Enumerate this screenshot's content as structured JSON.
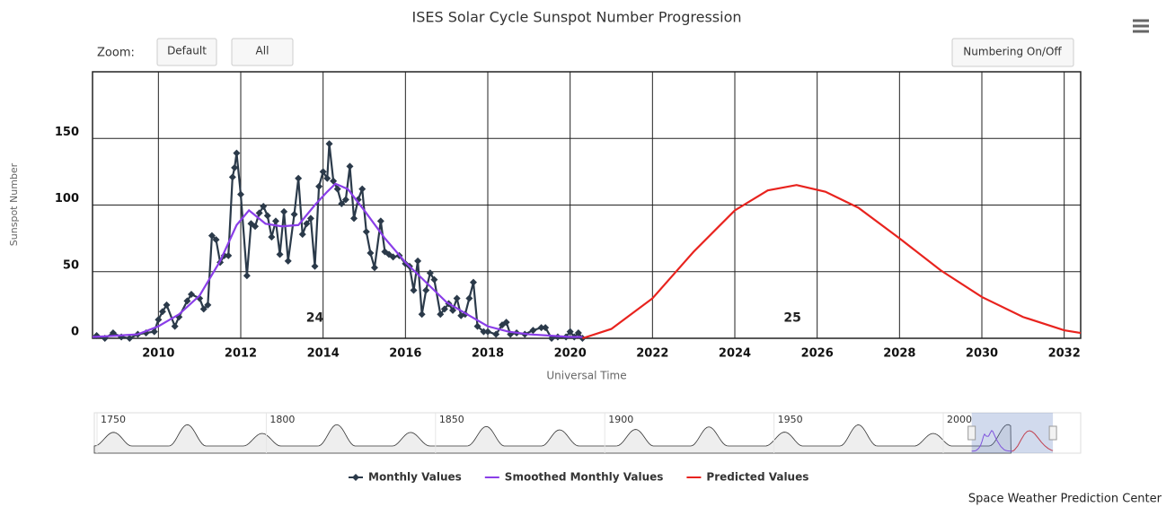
{
  "chart_data": {
    "type": "line",
    "title": "ISES Solar Cycle Sunspot Number Progression",
    "zoom_label": "Zoom:",
    "buttons": [
      "Default",
      "All",
      "Numbering On/Off"
    ],
    "x_label": "Universal Time",
    "y_label": "Sunspot Number",
    "credits": "Space Weather Prediction Center",
    "xlim": [
      2008.4,
      2032.4
    ],
    "xticks": [
      2010,
      2012,
      2014,
      2016,
      2018,
      2020,
      2022,
      2024,
      2026,
      2028,
      2030,
      2032
    ],
    "ylim": [
      0,
      200
    ],
    "yticks": [
      0,
      50,
      100,
      150
    ],
    "grid": true,
    "annotations": [
      {
        "text": "24",
        "x": 2013.8,
        "y": 15
      },
      {
        "text": "25",
        "x": 2025.4,
        "y": 15
      }
    ],
    "navigator": {
      "xlim": [
        1749.2,
        2040.6
      ],
      "xticks": [
        1750,
        1800,
        1850,
        1900,
        1950,
        2000
      ]
    },
    "series": [
      {
        "name": "Monthly Values",
        "color": "#2b3a4a",
        "markers": true,
        "x": [
          2008.5,
          2008.7,
          2008.9,
          2009.1,
          2009.3,
          2009.5,
          2009.7,
          2009.9,
          2010.0,
          2010.1,
          2010.2,
          2010.4,
          2010.5,
          2010.7,
          2010.8,
          2011.0,
          2011.1,
          2011.2,
          2011.3,
          2011.4,
          2011.5,
          2011.6,
          2011.7,
          2011.8,
          2011.85,
          2011.9,
          2012.0,
          2012.15,
          2012.25,
          2012.35,
          2012.45,
          2012.55,
          2012.65,
          2012.75,
          2012.85,
          2012.95,
          2013.05,
          2013.15,
          2013.3,
          2013.4,
          2013.5,
          2013.6,
          2013.7,
          2013.8,
          2013.9,
          2014.0,
          2014.1,
          2014.15,
          2014.25,
          2014.35,
          2014.45,
          2014.55,
          2014.65,
          2014.75,
          2014.85,
          2014.95,
          2015.05,
          2015.15,
          2015.25,
          2015.4,
          2015.5,
          2015.6,
          2015.7,
          2015.85,
          2016.0,
          2016.1,
          2016.2,
          2016.3,
          2016.4,
          2016.5,
          2016.6,
          2016.7,
          2016.85,
          2016.95,
          2017.05,
          2017.15,
          2017.25,
          2017.35,
          2017.45,
          2017.55,
          2017.65,
          2017.75,
          2017.9,
          2018.0,
          2018.2,
          2018.35,
          2018.45,
          2018.55,
          2018.7,
          2018.9,
          2019.1,
          2019.3,
          2019.4,
          2019.55,
          2019.7,
          2019.9,
          2020.0,
          2020.1,
          2020.2,
          2020.3
        ],
        "values": [
          2,
          0,
          4,
          1,
          0,
          3,
          4,
          5,
          14,
          20,
          25,
          9,
          16,
          28,
          33,
          30,
          22,
          25,
          77,
          74,
          57,
          62,
          62,
          121,
          128,
          139,
          108,
          47,
          86,
          84,
          94,
          99,
          92,
          76,
          88,
          63,
          95,
          58,
          93,
          120,
          78,
          86,
          90,
          54,
          114,
          125,
          120,
          146,
          118,
          112,
          101,
          104,
          129,
          90,
          104,
          112,
          80,
          64,
          53,
          88,
          65,
          63,
          61,
          62,
          56,
          54,
          36,
          58,
          18,
          36,
          49,
          44,
          18,
          22,
          26,
          21,
          30,
          17,
          18,
          30,
          42,
          9,
          5,
          5,
          3,
          10,
          12,
          3,
          4,
          3,
          6,
          8,
          8,
          0,
          1,
          1,
          5,
          1,
          4,
          0
        ]
      },
      {
        "name": "Smoothed Monthly Values",
        "color": "#8a3ee8",
        "markers": false,
        "x": [
          2008.4,
          2009,
          2009.5,
          2010,
          2010.5,
          2011,
          2011.5,
          2011.9,
          2012.2,
          2012.6,
          2013,
          2013.4,
          2013.8,
          2014.1,
          2014.3,
          2014.6,
          2015,
          2015.5,
          2016,
          2016.5,
          2017,
          2017.5,
          2018,
          2018.5,
          2019,
          2019.5,
          2020.0,
          2020.3
        ],
        "values": [
          1,
          2,
          3,
          9,
          18,
          32,
          58,
          85,
          96,
          86,
          84,
          85,
          100,
          110,
          116,
          112,
          96,
          75,
          57,
          42,
          27,
          18,
          9,
          5,
          3,
          2,
          1,
          1
        ]
      },
      {
        "name": "Predicted Values",
        "color": "#e8231e",
        "markers": false,
        "x": [
          2020.3,
          2021,
          2022,
          2023,
          2024,
          2024.8,
          2025.5,
          2026.2,
          2027,
          2028,
          2029,
          2030,
          2031,
          2032,
          2032.4
        ],
        "values": [
          0,
          7,
          30,
          65,
          96,
          111,
          115,
          110,
          98,
          75,
          51,
          31,
          16,
          6,
          4
        ]
      }
    ]
  }
}
